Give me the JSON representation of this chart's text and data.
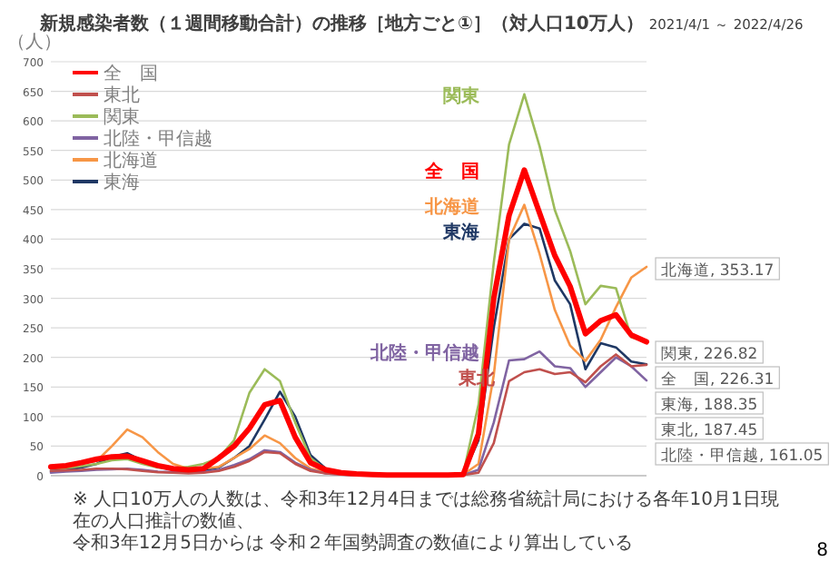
{
  "chart_data": {
    "type": "line",
    "title": "新規感染者数（１週間移動合計）の推移［地方ごと①］（対人口10万人）",
    "subtitle": "2021/4/1 ～ 2022/4/26",
    "ylabel": "（人）",
    "categories": [
      null,
      null,
      null,
      null,
      null,
      null,
      null,
      null,
      null,
      null,
      null,
      null,
      null,
      null,
      null,
      null,
      null,
      null,
      null,
      null,
      null,
      null,
      null,
      null,
      null,
      null,
      null,
      null,
      null,
      null,
      null,
      null,
      null,
      null,
      null,
      null,
      null,
      null,
      null,
      null
    ],
    "ylim": [
      0,
      700
    ],
    "yticks": [
      0,
      50,
      100,
      150,
      200,
      250,
      300,
      350,
      400,
      450,
      500,
      550,
      600,
      650,
      700
    ],
    "grid": "y",
    "legend": "top left",
    "tick_labels": "y",
    "marker": "none",
    "line_style": "solid",
    "series": [
      {
        "name": "全　国",
        "color": "#ff0000",
        "values": [
          15,
          17,
          22,
          28,
          32,
          33,
          25,
          17,
          12,
          10,
          12,
          30,
          50,
          80,
          120,
          127,
          65,
          22,
          10,
          5,
          3,
          2,
          1,
          1,
          1,
          1,
          1,
          2,
          71,
          300,
          440,
          517,
          444,
          372,
          320,
          240,
          262,
          272,
          238,
          226.31
        ]
      },
      {
        "name": "東北",
        "color": "#c0504d",
        "values": [
          8,
          9,
          10,
          12,
          12,
          11,
          8,
          6,
          5,
          4,
          5,
          8,
          15,
          25,
          40,
          38,
          20,
          8,
          4,
          2,
          1,
          1,
          0,
          0,
          0,
          0,
          0,
          1,
          5,
          55,
          160,
          175,
          180,
          172,
          175,
          158,
          185,
          205,
          185,
          187.45
        ]
      },
      {
        "name": "関東",
        "color": "#9bbb59",
        "values": [
          12,
          13,
          16,
          20,
          26,
          28,
          20,
          14,
          12,
          15,
          20,
          30,
          60,
          140,
          180,
          160,
          90,
          30,
          10,
          5,
          3,
          2,
          1,
          1,
          1,
          1,
          1,
          3,
          120,
          360,
          560,
          645,
          557,
          449,
          380,
          290,
          321,
          317,
          234,
          226.82
        ]
      },
      {
        "name": "北陸・甲信越",
        "color": "#8064a2",
        "values": [
          5,
          7,
          8,
          10,
          11,
          12,
          10,
          7,
          6,
          5,
          6,
          10,
          18,
          28,
          43,
          40,
          22,
          10,
          4,
          2,
          1,
          1,
          0,
          0,
          0,
          0,
          0,
          1,
          10,
          90,
          195,
          197,
          210,
          185,
          182,
          150,
          175,
          200,
          185,
          161.05
        ]
      },
      {
        "name": "北海道",
        "color": "#f79646",
        "values": [
          15,
          18,
          22,
          25,
          50,
          78,
          65,
          40,
          20,
          12,
          12,
          15,
          30,
          45,
          68,
          55,
          30,
          12,
          6,
          3,
          2,
          1,
          1,
          1,
          1,
          1,
          1,
          2,
          20,
          170,
          400,
          458,
          375,
          280,
          220,
          194,
          230,
          285,
          335,
          353.17
        ]
      },
      {
        "name": "東海",
        "color": "#1f3864",
        "values": [
          8,
          10,
          14,
          20,
          32,
          38,
          25,
          15,
          10,
          8,
          9,
          14,
          30,
          50,
          95,
          142,
          100,
          35,
          12,
          5,
          3,
          2,
          1,
          1,
          1,
          1,
          1,
          2,
          60,
          250,
          400,
          426,
          418,
          330,
          290,
          180,
          224,
          217,
          193,
          188.35
        ]
      }
    ],
    "annotations": [
      "北海道, 353.17",
      "関東, 226.82",
      "全　国, 226.31",
      "東海, 188.35",
      "東北, 187.45",
      "北陸・甲信越, 161.05",
      "※ 人口10万人の人数は、令和3年12月4日までは総務省統計局における各年10月1日現在の人口推計の数値、",
      "令和3年12月5日からは 令和２年国勢調査の数値により算出している",
      "8"
    ]
  }
}
